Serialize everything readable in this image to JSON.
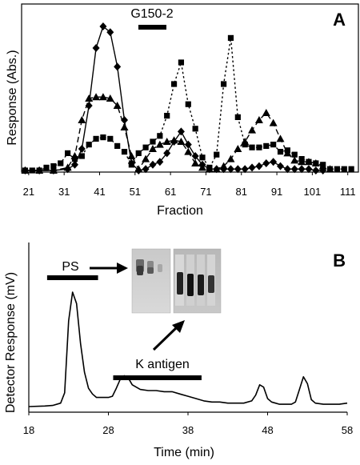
{
  "chart_data": [
    {
      "type": "line",
      "panel_label": "A",
      "xlabel": "Fraction",
      "ylabel": "Response (Abs.)",
      "x_tick_labels": [
        "21",
        "31",
        "41",
        "51",
        "61",
        "71",
        "81",
        "91",
        "101",
        "111"
      ],
      "xlim": [
        19,
        114
      ],
      "ylim": [
        0,
        100
      ],
      "grid": false,
      "annotation": {
        "text": "G150-2",
        "x_range": [
          53,
          60
        ]
      },
      "series": [
        {
          "marker": "diamond",
          "line_style": "solid",
          "x": [
            20,
            24,
            28,
            32,
            34,
            36,
            38,
            40,
            42,
            44,
            46,
            48,
            50,
            52,
            54,
            56,
            58,
            60,
            62,
            64,
            66,
            68,
            70,
            72,
            74,
            76,
            78,
            80,
            82,
            84,
            86,
            88,
            90,
            92,
            94,
            96,
            98,
            100,
            102,
            104
          ],
          "y": [
            0,
            0,
            0,
            1,
            4,
            15,
            45,
            85,
            100,
            96,
            72,
            35,
            5,
            0,
            1,
            4,
            6,
            12,
            20,
            27,
            18,
            10,
            4,
            1,
            1,
            1,
            1,
            1,
            1,
            2,
            3,
            5,
            6,
            3,
            1,
            1,
            1,
            1,
            0,
            0
          ]
        },
        {
          "marker": "triangle",
          "line_style": "dashed",
          "x": [
            20,
            24,
            28,
            32,
            34,
            36,
            38,
            40,
            42,
            44,
            46,
            48,
            50,
            52,
            54,
            56,
            58,
            60,
            62,
            64,
            66,
            68,
            70,
            72,
            74,
            76,
            78,
            80,
            82,
            84,
            86,
            88,
            90,
            92,
            94,
            96,
            98,
            100,
            102,
            104,
            106
          ],
          "y": [
            0,
            0,
            0,
            2,
            10,
            35,
            50,
            51,
            51,
            50,
            45,
            30,
            10,
            1,
            8,
            15,
            18,
            20,
            21,
            20,
            13,
            5,
            2,
            1,
            1,
            3,
            8,
            15,
            20,
            28,
            35,
            40,
            33,
            22,
            12,
            7,
            6,
            6,
            5,
            3,
            1
          ]
        },
        {
          "marker": "square",
          "line_style": "dotted",
          "x": [
            20,
            22,
            24,
            26,
            28,
            30,
            32,
            34,
            36,
            38,
            40,
            42,
            44,
            46,
            48,
            50,
            52,
            54,
            56,
            58,
            60,
            62,
            64,
            66,
            68,
            70,
            72,
            74,
            76,
            78,
            80,
            82,
            84,
            86,
            88,
            90,
            92,
            94,
            96,
            98,
            100,
            102,
            104,
            106,
            108,
            110,
            112
          ],
          "y": [
            0,
            0,
            0,
            2,
            3,
            5,
            12,
            8,
            10,
            18,
            22,
            23,
            22,
            17,
            13,
            4,
            12,
            16,
            20,
            24,
            38,
            60,
            75,
            46,
            29,
            9,
            2,
            11,
            60,
            92,
            37,
            18,
            16,
            16,
            17,
            18,
            13,
            14,
            11,
            8,
            6,
            5,
            4,
            1,
            1,
            1,
            1
          ]
        }
      ]
    },
    {
      "type": "line",
      "panel_label": "B",
      "xlabel": "Time (min)",
      "ylabel": "Detector Response (mV)",
      "x_tick_labels": [
        "18",
        "28",
        "38",
        "48",
        "58"
      ],
      "xlim": [
        18,
        58
      ],
      "ylim": [
        0,
        100
      ],
      "grid": false,
      "annotations": [
        {
          "text": "PS",
          "x_range": [
            20.3,
            26.7
          ]
        },
        {
          "text": "K antigen",
          "x_range": [
            28.6,
            39.7
          ]
        }
      ],
      "series": [
        {
          "line_style": "solid",
          "x": [
            18,
            20,
            21,
            22,
            22.5,
            23,
            23.5,
            24,
            24.5,
            25,
            25.5,
            26,
            26.5,
            27,
            28,
            28.5,
            29,
            29.5,
            30,
            30.5,
            31,
            32,
            33,
            34,
            35,
            36,
            37,
            38,
            39,
            40,
            41,
            42,
            43,
            44,
            45,
            46,
            46.5,
            47,
            47.5,
            48,
            48.5,
            49,
            49.5,
            50,
            51,
            51.5,
            52,
            52.5,
            53,
            53.5,
            54,
            55,
            56,
            57,
            58
          ],
          "y": [
            0,
            0.5,
            1,
            3,
            12,
            75,
            100,
            90,
            55,
            30,
            16,
            11,
            8,
            8,
            8,
            9,
            16,
            24,
            27,
            25,
            19,
            15,
            14,
            14,
            13,
            13,
            11,
            9,
            7,
            5,
            4,
            4,
            3,
            3,
            3,
            5,
            10,
            19,
            17,
            7,
            4,
            3,
            2,
            2,
            2,
            4,
            15,
            26,
            20,
            6,
            3,
            2,
            2,
            2,
            3
          ]
        }
      ]
    }
  ]
}
